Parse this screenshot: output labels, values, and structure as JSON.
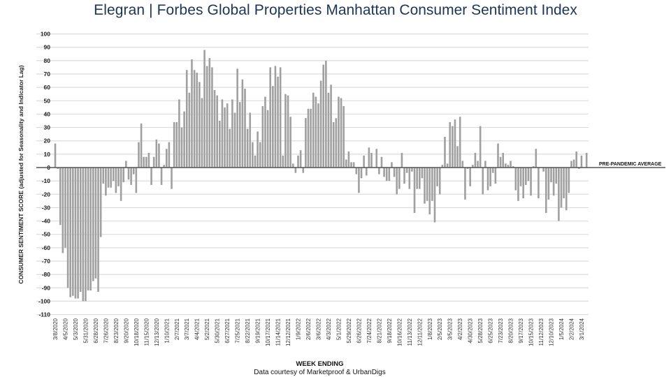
{
  "header": {
    "brand": "Elegran | Forbes Global Properties",
    "subtitle": "Manhattan Consumer Sentiment Index"
  },
  "footer": {
    "credit": "Data courtesy of Marketproof & UrbanDigs"
  },
  "colors": {
    "bar": "#a0a0a0",
    "title": "#1c3557",
    "zero_line": "#555555",
    "grid": "#dcdcdc"
  },
  "chart_data": {
    "type": "bar",
    "title": "Elegran | Forbes Global Properties Manhattan Consumer Sentiment Index",
    "xlabel": "WEEK ENDING",
    "ylabel": "CONSUMER SENTIMENT SCORE (adjusted for Seasonality and Indicator Lag)",
    "ylim": [
      -110,
      100
    ],
    "yticks": [
      100,
      90,
      80,
      70,
      60,
      50,
      40,
      30,
      20,
      10,
      0,
      -10,
      -20,
      -30,
      -40,
      -50,
      -60,
      -70,
      -80,
      -90,
      -100,
      -110
    ],
    "grid": true,
    "reference_line": {
      "value": 0,
      "label": "PRE-PANDEMIC  AVERAGE"
    },
    "x_tick_every_weeks": 4,
    "x_tick_labels": [
      "3/8/2020",
      "4/5/2020",
      "5/3/2020",
      "5/31/2020",
      "6/28/2020",
      "7/26/2020",
      "8/23/2020",
      "9/20/2020",
      "10/18/2020",
      "11/15/2020",
      "12/13/2020",
      "1/10/2021",
      "2/7/2021",
      "3/7/2021",
      "4/4/2021",
      "5/2/2021",
      "5/30/2021",
      "6/27/2021",
      "7/25/2021",
      "8/22/2021",
      "9/19/2021",
      "10/17/2021",
      "11/14/2021",
      "12/12/2021",
      "1/9/2022",
      "2/6/2022",
      "3/6/2022",
      "4/3/2022",
      "5/1/2022",
      "5/29/2022",
      "6/26/2022",
      "7/24/2022",
      "8/21/2022",
      "9/18/2022",
      "10/16/2022",
      "11/13/2022",
      "12/11/2022",
      "1/8/2023",
      "2/5/2023",
      "3/5/2023",
      "4/2/2023",
      "4/30/2023",
      "5/28/2023",
      "6/25/2023",
      "7/23/2023",
      "8/20/2023",
      "9/17/2023",
      "10/15/2023",
      "11/12/2023",
      "12/10/2023",
      "1/5/2024",
      "2/2/2024",
      "3/1/2024"
    ],
    "values": [
      18,
      -1,
      -43,
      -64,
      -60,
      -90,
      -97,
      -96,
      -98,
      -98,
      -93,
      -100,
      -100,
      -92,
      -92,
      -85,
      -83,
      -93,
      -52,
      -12,
      -21,
      -15,
      -15,
      -10,
      -19,
      -14,
      -25,
      -11,
      5,
      -9,
      -13,
      -5,
      -19,
      19,
      33,
      8,
      8,
      11,
      -13,
      8,
      21,
      18,
      -13,
      2,
      14,
      19,
      -16,
      34,
      34,
      51,
      30,
      42,
      73,
      56,
      81,
      73,
      71,
      64,
      52,
      88,
      76,
      82,
      75,
      58,
      54,
      35,
      51,
      45,
      48,
      29,
      51,
      41,
      74,
      49,
      66,
      59,
      29,
      41,
      19,
      9,
      27,
      19,
      46,
      53,
      43,
      75,
      61,
      76,
      68,
      75,
      9,
      55,
      54,
      38,
      3,
      -4,
      9,
      13,
      -4,
      37,
      44,
      44,
      56,
      53,
      48,
      65,
      77,
      80,
      56,
      62,
      34,
      37,
      53,
      52,
      46,
      6,
      12,
      4,
      4,
      -5,
      -19,
      -8,
      9,
      -6,
      15,
      11,
      0,
      14,
      -5,
      8,
      -7,
      -10,
      -10,
      4,
      -7,
      -20,
      -16,
      11,
      -12,
      -4,
      -16,
      -3,
      -34,
      -16,
      -16,
      -8,
      -27,
      -25,
      -35,
      -25,
      -41,
      -14,
      -20,
      2,
      23,
      3,
      34,
      31,
      36,
      16,
      38,
      5,
      -24,
      -1,
      -14,
      2,
      11,
      5,
      31,
      -20,
      5,
      -17,
      -14,
      -4,
      -12,
      18,
      8,
      11,
      3,
      2,
      5,
      1,
      -17,
      -25,
      -14,
      -23,
      -13,
      -10,
      -21,
      1,
      14,
      -23,
      0,
      -3,
      -34,
      -24,
      -11,
      -21,
      -12,
      -40,
      -30,
      -23,
      -32,
      -19,
      5,
      6,
      12,
      -1,
      9,
      0,
      11
    ]
  }
}
